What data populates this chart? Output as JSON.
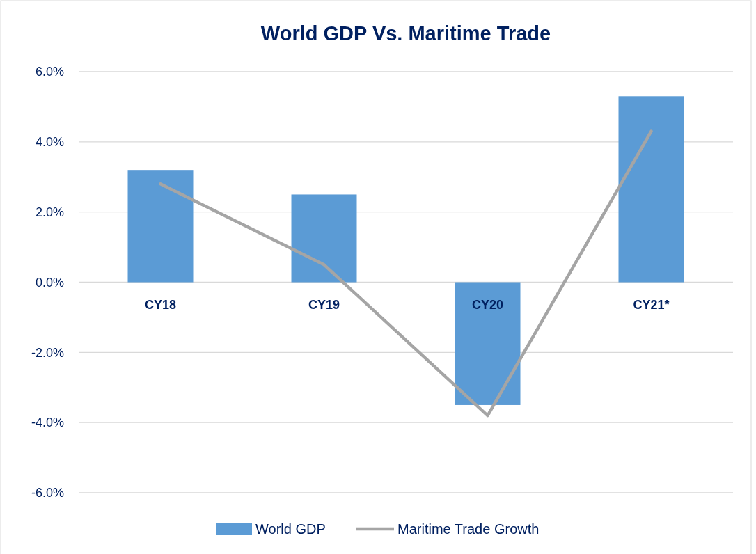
{
  "chart_data": {
    "type": "bar",
    "title": "World GDP Vs. Maritime Trade",
    "categories": [
      "CY18",
      "CY19",
      "CY20",
      "CY21*"
    ],
    "series": [
      {
        "name": "World GDP",
        "color": "#5b9bd5",
        "values": [
          3.2,
          2.5,
          -3.5,
          5.3
        ]
      },
      {
        "name": "Maritime Trade Growth",
        "type": "line",
        "color": "#a5a5a5",
        "values": [
          2.8,
          0.5,
          -3.8,
          4.3
        ]
      }
    ],
    "ylim": [
      -6,
      6
    ],
    "yticks": [
      {
        "value": -6,
        "label": "-6.0%"
      },
      {
        "value": -4,
        "label": "-4.0%"
      },
      {
        "value": -2,
        "label": "-2.0%"
      },
      {
        "value": 0,
        "label": "0.0%"
      },
      {
        "value": 2,
        "label": "2.0%"
      },
      {
        "value": 4,
        "label": "4.0%"
      },
      {
        "value": 6,
        "label": "6.0%"
      }
    ],
    "grid": "y",
    "legend": "bottom"
  }
}
